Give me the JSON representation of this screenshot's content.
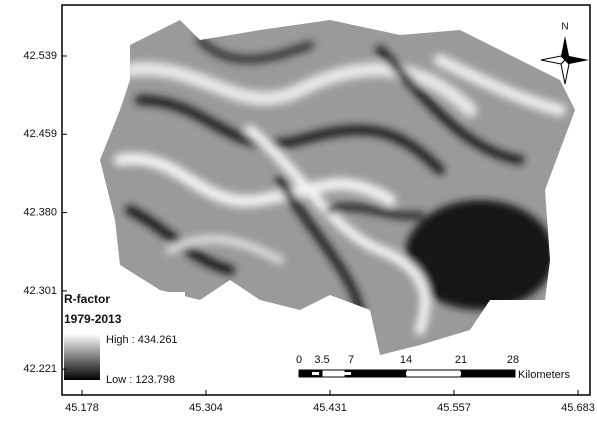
{
  "map": {
    "y_ticks": [
      "42.539",
      "42.459",
      "42.380",
      "42.301",
      "42.221"
    ],
    "x_ticks": [
      "45.178",
      "45.304",
      "45.431",
      "45.557",
      "45.683"
    ],
    "legend": {
      "title": "R-factor",
      "subtitle": "1979-2013",
      "high": "High : 434.261",
      "low": "Low : 123.798"
    },
    "scale_bar": {
      "labels": [
        "0",
        "3.5",
        "7",
        "14",
        "21",
        "28"
      ],
      "unit": "Kilometers"
    },
    "north": "N"
  }
}
